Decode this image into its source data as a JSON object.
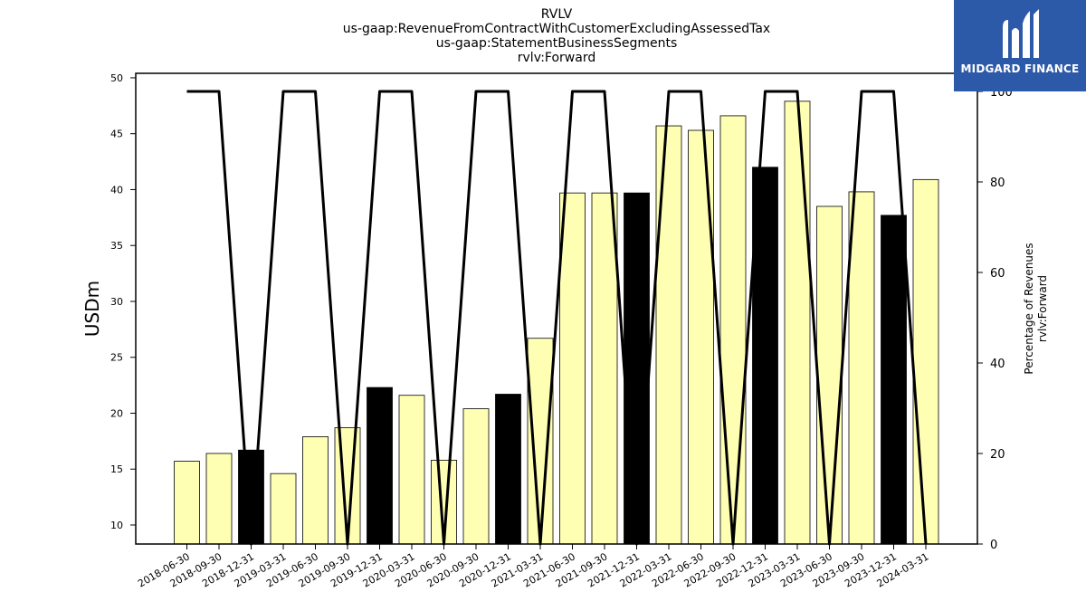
{
  "chart_data": {
    "type": "bar",
    "title_lines": [
      "RVLV",
      "us-gaap:RevenueFromContractWithCustomerExcludingAssessedTax",
      "us-gaap:StatementBusinessSegments",
      "rvlv:Forward"
    ],
    "ylabel": "USDm",
    "y2label_lines": [
      "Percentage of Revenues",
      "rvlv:Forward"
    ],
    "ylim": [
      8.3,
      50.4
    ],
    "y_ticks": [
      10,
      15,
      20,
      25,
      30,
      35,
      40,
      45,
      50
    ],
    "y2lim": [
      0,
      104
    ],
    "y2_ticks": [
      0,
      20,
      40,
      60,
      80,
      100
    ],
    "grid": false,
    "categories": [
      "2018-06-30",
      "2018-09-30",
      "2018-12-31",
      "2019-03-31",
      "2019-06-30",
      "2019-09-30",
      "2019-12-31",
      "2020-03-31",
      "2020-06-30",
      "2020-09-30",
      "2020-12-31",
      "2021-03-31",
      "2021-06-30",
      "2021-09-30",
      "2021-12-31",
      "2022-03-31",
      "2022-06-30",
      "2022-09-30",
      "2022-12-31",
      "2023-03-31",
      "2023-06-30",
      "2023-09-30",
      "2023-12-31",
      "2024-03-31"
    ],
    "series": [
      {
        "type": "bar",
        "values": [
          15.7,
          16.4,
          16.7,
          14.6,
          17.9,
          18.7,
          22.3,
          21.6,
          15.8,
          20.4,
          21.7,
          26.7,
          39.7,
          39.7,
          39.7,
          45.7,
          45.3,
          46.6,
          42.0,
          47.9,
          38.5,
          39.8,
          37.7,
          40.9
        ],
        "highlight_indices": [
          2,
          6,
          10,
          14,
          18,
          22
        ],
        "color": "#ffffb3",
        "highlight_color": "#000000"
      },
      {
        "type": "line",
        "axis": "right",
        "values": [
          100,
          100,
          0,
          100,
          100,
          0,
          100,
          100,
          0,
          100,
          100,
          0,
          100,
          100,
          0,
          100,
          100,
          0,
          100,
          100,
          0,
          100,
          100,
          0
        ],
        "color": "#000000"
      }
    ]
  },
  "logo": {
    "text": "MIDGARD FINANCE",
    "icon": "midgard-logo-icon",
    "color": "#2d5aa8"
  }
}
